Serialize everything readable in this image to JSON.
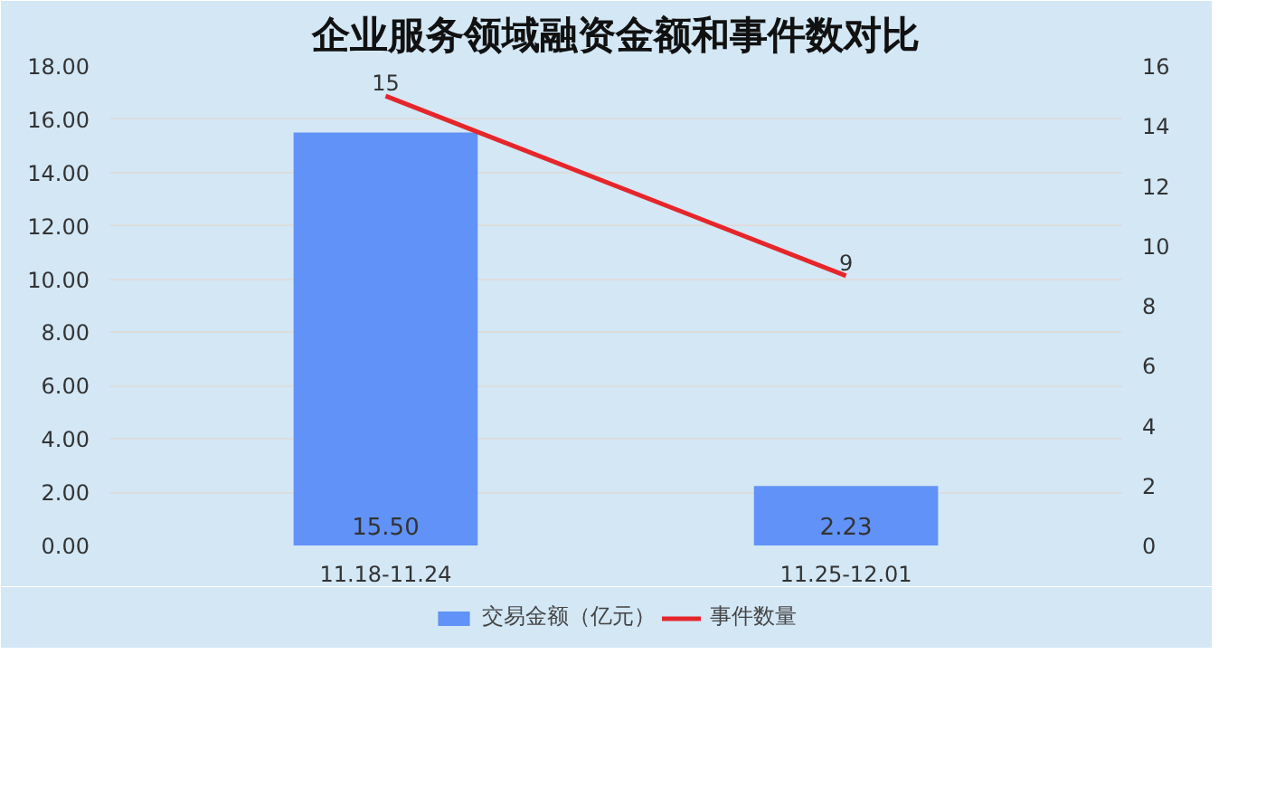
{
  "chart_data": {
    "type": "bar",
    "title": "企业服务领域融资金额和事件数对比",
    "categories": [
      "11.18-11.24",
      "11.25-12.01"
    ],
    "series": [
      {
        "name": "交易金额（亿元）",
        "color": "#6192f7",
        "values": [
          15.5,
          2.23
        ],
        "value_labels": [
          "15.50",
          "2.23"
        ]
      },
      {
        "name": "事件数量",
        "type": "line",
        "axis": "y2",
        "color": "#e5262a",
        "values": [
          15,
          9
        ]
      }
    ],
    "ylim": [
      0,
      18
    ],
    "yticks": [
      {
        "value": 0,
        "label": "0.00"
      },
      {
        "value": 2,
        "label": "2.00"
      },
      {
        "value": 4,
        "label": "4.00"
      },
      {
        "value": 6,
        "label": "6.00"
      },
      {
        "value": 8,
        "label": "8.00"
      },
      {
        "value": 10,
        "label": "10.00"
      },
      {
        "value": 12,
        "label": "12.00"
      },
      {
        "value": 14,
        "label": "14.00"
      },
      {
        "value": 16,
        "label": "16.00"
      },
      {
        "value": 18,
        "label": "18.00"
      }
    ],
    "y2lim": [
      0,
      16
    ],
    "y2ticks": [
      0,
      2,
      4,
      6,
      8,
      10,
      12,
      14,
      16
    ],
    "data_labels": true,
    "grid": "y",
    "legend": "bottom",
    "marker": "none"
  }
}
